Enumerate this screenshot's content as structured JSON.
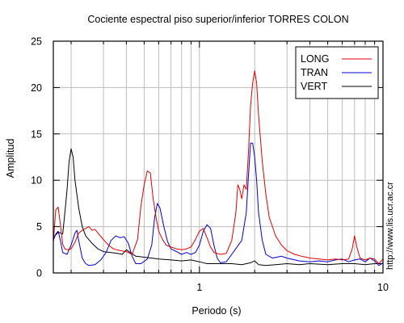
{
  "chart_data": {
    "type": "line",
    "title": "Cociente espectral piso superior/inferior  TORRES COLON",
    "xlabel": "Periodo (s)",
    "ylabel": "Amplitud",
    "x_scale": "log",
    "xlim": [
      0.16,
      10
    ],
    "ylim": [
      0,
      25
    ],
    "x_ticks": [
      {
        "value": 1,
        "label": "1"
      },
      {
        "value": 10,
        "label": "10"
      }
    ],
    "y_ticks": [
      0,
      5,
      10,
      15,
      20,
      25
    ],
    "grid": true,
    "legend": "top-right",
    "watermark": "http://www.lis.ucr.ac.cr",
    "series": [
      {
        "name": "LONG",
        "color": "#e00000",
        "points": [
          [
            0.16,
            3.3
          ],
          [
            0.165,
            6.8
          ],
          [
            0.17,
            7.1
          ],
          [
            0.175,
            5.2
          ],
          [
            0.18,
            3.1
          ],
          [
            0.185,
            2.6
          ],
          [
            0.19,
            2.5
          ],
          [
            0.2,
            2.6
          ],
          [
            0.21,
            3.3
          ],
          [
            0.22,
            4.3
          ],
          [
            0.23,
            4.6
          ],
          [
            0.24,
            4.8
          ],
          [
            0.25,
            5.0
          ],
          [
            0.26,
            4.6
          ],
          [
            0.27,
            4.7
          ],
          [
            0.28,
            4.3
          ],
          [
            0.3,
            3.6
          ],
          [
            0.32,
            3.0
          ],
          [
            0.34,
            2.6
          ],
          [
            0.37,
            2.4
          ],
          [
            0.4,
            2.3
          ],
          [
            0.43,
            2.0
          ],
          [
            0.46,
            3.6
          ],
          [
            0.48,
            7.2
          ],
          [
            0.5,
            9.5
          ],
          [
            0.52,
            11.0
          ],
          [
            0.54,
            10.8
          ],
          [
            0.56,
            8.0
          ],
          [
            0.58,
            6.0
          ],
          [
            0.6,
            4.5
          ],
          [
            0.63,
            3.6
          ],
          [
            0.66,
            3.0
          ],
          [
            0.7,
            2.8
          ],
          [
            0.75,
            2.6
          ],
          [
            0.8,
            2.5
          ],
          [
            0.85,
            2.6
          ],
          [
            0.9,
            2.8
          ],
          [
            0.95,
            3.6
          ],
          [
            1.0,
            4.5
          ],
          [
            1.05,
            4.8
          ],
          [
            1.1,
            3.8
          ],
          [
            1.15,
            2.8
          ],
          [
            1.2,
            2.2
          ],
          [
            1.3,
            2.0
          ],
          [
            1.4,
            2.1
          ],
          [
            1.5,
            3.5
          ],
          [
            1.58,
            6.5
          ],
          [
            1.62,
            9.5
          ],
          [
            1.66,
            9.0
          ],
          [
            1.7,
            8.0
          ],
          [
            1.75,
            9.5
          ],
          [
            1.8,
            9.0
          ],
          [
            1.85,
            13.0
          ],
          [
            1.9,
            18.0
          ],
          [
            1.95,
            20.5
          ],
          [
            2.0,
            21.8
          ],
          [
            2.05,
            20.5
          ],
          [
            2.1,
            17.0
          ],
          [
            2.2,
            12.0
          ],
          [
            2.3,
            8.5
          ],
          [
            2.4,
            6.0
          ],
          [
            2.6,
            4.0
          ],
          [
            2.8,
            3.0
          ],
          [
            3.0,
            2.4
          ],
          [
            3.3,
            2.0
          ],
          [
            3.6,
            1.8
          ],
          [
            4.0,
            1.6
          ],
          [
            4.5,
            1.5
          ],
          [
            5.0,
            1.4
          ],
          [
            5.5,
            1.5
          ],
          [
            6.0,
            1.4
          ],
          [
            6.5,
            1.5
          ],
          [
            6.8,
            2.6
          ],
          [
            7.0,
            4.0
          ],
          [
            7.2,
            2.8
          ],
          [
            7.5,
            1.6
          ],
          [
            8.0,
            1.4
          ],
          [
            8.5,
            1.6
          ],
          [
            9.0,
            1.5
          ],
          [
            9.5,
            1.0
          ],
          [
            10.0,
            1.5
          ]
        ]
      },
      {
        "name": "TRAN",
        "color": "#0000d0",
        "points": [
          [
            0.16,
            3.5
          ],
          [
            0.165,
            4.2
          ],
          [
            0.17,
            4.5
          ],
          [
            0.175,
            3.5
          ],
          [
            0.18,
            2.2
          ],
          [
            0.19,
            2.0
          ],
          [
            0.2,
            3.0
          ],
          [
            0.21,
            4.3
          ],
          [
            0.215,
            4.6
          ],
          [
            0.22,
            3.5
          ],
          [
            0.23,
            1.6
          ],
          [
            0.24,
            1.0
          ],
          [
            0.25,
            0.8
          ],
          [
            0.27,
            0.9
          ],
          [
            0.29,
            1.4
          ],
          [
            0.31,
            2.2
          ],
          [
            0.33,
            3.5
          ],
          [
            0.35,
            4.0
          ],
          [
            0.37,
            3.8
          ],
          [
            0.39,
            3.9
          ],
          [
            0.41,
            3.2
          ],
          [
            0.43,
            1.8
          ],
          [
            0.45,
            1.0
          ],
          [
            0.48,
            1.0
          ],
          [
            0.52,
            1.5
          ],
          [
            0.55,
            3.0
          ],
          [
            0.57,
            6.0
          ],
          [
            0.59,
            7.5
          ],
          [
            0.61,
            7.0
          ],
          [
            0.64,
            5.0
          ],
          [
            0.67,
            3.4
          ],
          [
            0.7,
            2.6
          ],
          [
            0.75,
            2.3
          ],
          [
            0.8,
            2.0
          ],
          [
            0.85,
            2.2
          ],
          [
            0.9,
            2.0
          ],
          [
            0.95,
            2.2
          ],
          [
            1.0,
            3.0
          ],
          [
            1.05,
            4.5
          ],
          [
            1.1,
            5.2
          ],
          [
            1.15,
            4.8
          ],
          [
            1.2,
            3.0
          ],
          [
            1.25,
            1.6
          ],
          [
            1.3,
            1.1
          ],
          [
            1.4,
            1.2
          ],
          [
            1.5,
            2.0
          ],
          [
            1.6,
            2.8
          ],
          [
            1.7,
            3.5
          ],
          [
            1.8,
            6.5
          ],
          [
            1.85,
            10.5
          ],
          [
            1.9,
            14.0
          ],
          [
            1.95,
            14.0
          ],
          [
            2.0,
            12.5
          ],
          [
            2.05,
            10.0
          ],
          [
            2.1,
            6.5
          ],
          [
            2.2,
            3.5
          ],
          [
            2.3,
            2.0
          ],
          [
            2.5,
            1.6
          ],
          [
            2.8,
            1.8
          ],
          [
            3.0,
            1.6
          ],
          [
            3.5,
            1.3
          ],
          [
            4.0,
            1.2
          ],
          [
            4.5,
            1.3
          ],
          [
            5.0,
            1.2
          ],
          [
            5.5,
            1.4
          ],
          [
            6.0,
            1.5
          ],
          [
            6.5,
            1.2
          ],
          [
            7.0,
            1.4
          ],
          [
            7.5,
            1.5
          ],
          [
            8.0,
            1.2
          ],
          [
            8.5,
            1.6
          ],
          [
            9.0,
            1.3
          ],
          [
            9.5,
            0.8
          ],
          [
            10.0,
            1.1
          ]
        ]
      },
      {
        "name": "VERT",
        "color": "#000000",
        "points": [
          [
            0.16,
            3.8
          ],
          [
            0.17,
            4.4
          ],
          [
            0.18,
            4.2
          ],
          [
            0.185,
            6.5
          ],
          [
            0.19,
            9.0
          ],
          [
            0.195,
            12.0
          ],
          [
            0.2,
            13.4
          ],
          [
            0.205,
            12.5
          ],
          [
            0.21,
            10.0
          ],
          [
            0.22,
            7.0
          ],
          [
            0.23,
            5.0
          ],
          [
            0.24,
            4.0
          ],
          [
            0.26,
            3.2
          ],
          [
            0.28,
            2.6
          ],
          [
            0.3,
            2.3
          ],
          [
            0.33,
            2.2
          ],
          [
            0.36,
            2.1
          ],
          [
            0.38,
            2.0
          ],
          [
            0.4,
            2.5
          ],
          [
            0.42,
            2.2
          ],
          [
            0.45,
            1.8
          ],
          [
            0.5,
            1.7
          ],
          [
            0.55,
            1.6
          ],
          [
            0.6,
            1.5
          ],
          [
            0.7,
            1.4
          ],
          [
            0.8,
            1.3
          ],
          [
            0.9,
            1.4
          ],
          [
            1.0,
            1.2
          ],
          [
            1.1,
            1.0
          ],
          [
            1.3,
            1.0
          ],
          [
            1.5,
            1.0
          ],
          [
            1.7,
            0.9
          ],
          [
            1.9,
            1.1
          ],
          [
            2.0,
            1.3
          ],
          [
            2.1,
            0.9
          ],
          [
            2.3,
            0.8
          ],
          [
            2.6,
            0.9
          ],
          [
            3.0,
            1.0
          ],
          [
            3.5,
            0.9
          ],
          [
            4.0,
            1.0
          ],
          [
            5.0,
            0.9
          ],
          [
            6.0,
            1.0
          ],
          [
            7.0,
            1.0
          ],
          [
            8.0,
            0.9
          ],
          [
            9.0,
            1.0
          ],
          [
            10.0,
            1.0
          ]
        ]
      }
    ]
  }
}
